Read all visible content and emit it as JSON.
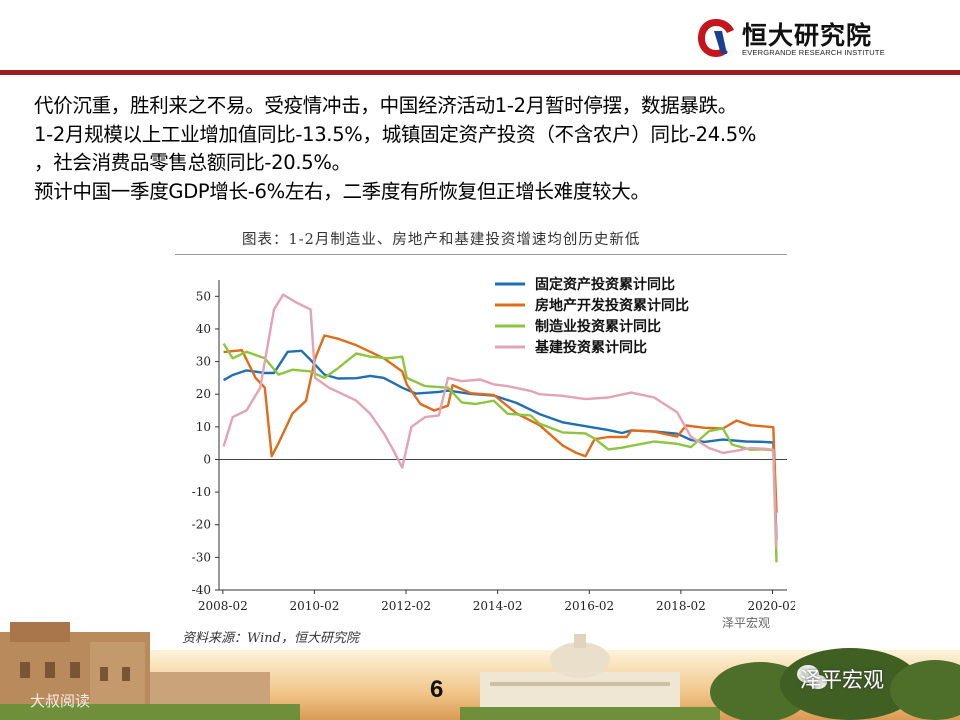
{
  "header": {
    "logo_text": "恒大研究院",
    "logo_subtitle": "EVERGRANDE RESEARCH INSTITUTE",
    "accent": "#9e1b1f"
  },
  "intro": {
    "lines": [
      "代价沉重，胜利来之不易。受疫情冲击，中国经济活动1-2月暂时停摆，数据暴跌。",
      "1-2月规模以上工业增加值同比-13.5%，城镇固定资产投资（不含农户）同比-24.5%",
      "，社会消费品零售总额同比-20.5%。",
      "预计中国一季度GDP增长-6%左右，二季度有所恢复但正增长难度较大。"
    ]
  },
  "chart_title": "图表：1-2月制造业、房地产和基建投资增速均创历史新低",
  "source": "资料来源：Wind，恒大研究院",
  "footer": {
    "page_number": "6",
    "watermark_center": "泽平宏观",
    "watermark_right": "泽平宏观",
    "watermark_left": "大叔阅读"
  },
  "chart_data": {
    "type": "line",
    "title": "图表：1-2月制造业、房地产和基建投资增速均创历史新低",
    "xlabel": "",
    "ylabel": "",
    "ylim": [
      -40,
      55
    ],
    "xlim": [
      2008.0,
      2020.4
    ],
    "yticks": [
      50,
      40,
      30,
      20,
      10,
      0,
      -10,
      -20,
      -30,
      -40
    ],
    "xticks": [
      "2008-02",
      "2010-02",
      "2012-02",
      "2014-02",
      "2016-02",
      "2018-02",
      "2020-02"
    ],
    "grid": false,
    "legend_position": "top-right",
    "series": [
      {
        "name": "固定资产投资累计同比",
        "color": "#1f6fb5",
        "points": [
          [
            2008.1,
            24.3
          ],
          [
            2008.3,
            25.9
          ],
          [
            2008.6,
            27.3
          ],
          [
            2009.0,
            26.5
          ],
          [
            2009.2,
            26.5
          ],
          [
            2009.5,
            33.0
          ],
          [
            2009.8,
            33.3
          ],
          [
            2010.0,
            30.5
          ],
          [
            2010.3,
            26.0
          ],
          [
            2010.6,
            24.8
          ],
          [
            2011.0,
            24.9
          ],
          [
            2011.3,
            25.6
          ],
          [
            2011.6,
            25.0
          ],
          [
            2012.0,
            22.0
          ],
          [
            2012.3,
            20.2
          ],
          [
            2012.8,
            20.7
          ],
          [
            2013.0,
            21.1
          ],
          [
            2013.5,
            20.1
          ],
          [
            2014.0,
            19.6
          ],
          [
            2014.5,
            17.3
          ],
          [
            2015.0,
            13.9
          ],
          [
            2015.5,
            11.4
          ],
          [
            2016.0,
            10.2
          ],
          [
            2016.5,
            9.0
          ],
          [
            2016.8,
            8.1
          ],
          [
            2017.0,
            8.9
          ],
          [
            2017.5,
            8.6
          ],
          [
            2018.0,
            7.9
          ],
          [
            2018.3,
            6.0
          ],
          [
            2018.6,
            5.4
          ],
          [
            2019.0,
            6.1
          ],
          [
            2019.5,
            5.5
          ],
          [
            2019.9,
            5.4
          ],
          [
            2020.1,
            5.2
          ],
          [
            2020.17,
            -24.5
          ]
        ]
      },
      {
        "name": "房地产开发投资累计同比",
        "color": "#e06c1a",
        "points": [
          [
            2008.1,
            32.9
          ],
          [
            2008.5,
            33.5
          ],
          [
            2008.8,
            25.0
          ],
          [
            2009.0,
            22.0
          ],
          [
            2009.15,
            1.0
          ],
          [
            2009.3,
            5.0
          ],
          [
            2009.6,
            14.0
          ],
          [
            2009.9,
            18.0
          ],
          [
            2010.1,
            31.0
          ],
          [
            2010.3,
            38.0
          ],
          [
            2010.6,
            37.0
          ],
          [
            2011.0,
            35.0
          ],
          [
            2011.3,
            33.0
          ],
          [
            2011.6,
            31.0
          ],
          [
            2012.0,
            27.0
          ],
          [
            2012.1,
            23.0
          ],
          [
            2012.4,
            17.0
          ],
          [
            2012.7,
            15.0
          ],
          [
            2013.0,
            16.5
          ],
          [
            2013.1,
            22.8
          ],
          [
            2013.5,
            20.3
          ],
          [
            2014.0,
            19.8
          ],
          [
            2014.5,
            14.1
          ],
          [
            2015.0,
            10.5
          ],
          [
            2015.5,
            4.3
          ],
          [
            2015.8,
            2.0
          ],
          [
            2016.0,
            1.0
          ],
          [
            2016.2,
            6.2
          ],
          [
            2016.5,
            6.9
          ],
          [
            2016.9,
            6.9
          ],
          [
            2017.0,
            8.9
          ],
          [
            2017.5,
            8.5
          ],
          [
            2018.0,
            7.0
          ],
          [
            2018.2,
            10.4
          ],
          [
            2018.6,
            9.7
          ],
          [
            2019.0,
            9.5
          ],
          [
            2019.3,
            11.9
          ],
          [
            2019.6,
            10.5
          ],
          [
            2020.0,
            10.0
          ],
          [
            2020.1,
            9.9
          ],
          [
            2020.17,
            -16.3
          ]
        ]
      },
      {
        "name": "制造业投资累计同比",
        "color": "#8cc63f",
        "points": [
          [
            2008.1,
            35.5
          ],
          [
            2008.3,
            31.0
          ],
          [
            2008.6,
            33.0
          ],
          [
            2009.0,
            31.0
          ],
          [
            2009.3,
            26.0
          ],
          [
            2009.6,
            27.5
          ],
          [
            2010.0,
            27.0
          ],
          [
            2010.3,
            25.0
          ],
          [
            2010.6,
            28.0
          ],
          [
            2011.0,
            32.5
          ],
          [
            2011.3,
            31.5
          ],
          [
            2011.7,
            31.0
          ],
          [
            2012.0,
            31.5
          ],
          [
            2012.1,
            25.0
          ],
          [
            2012.5,
            22.5
          ],
          [
            2013.0,
            22.0
          ],
          [
            2013.3,
            17.5
          ],
          [
            2013.6,
            17.0
          ],
          [
            2014.0,
            18.0
          ],
          [
            2014.3,
            14.0
          ],
          [
            2014.8,
            13.5
          ],
          [
            2015.0,
            11.0
          ],
          [
            2015.5,
            8.3
          ],
          [
            2016.0,
            8.0
          ],
          [
            2016.2,
            6.4
          ],
          [
            2016.5,
            3.1
          ],
          [
            2016.8,
            3.6
          ],
          [
            2017.0,
            4.2
          ],
          [
            2017.5,
            5.5
          ],
          [
            2018.0,
            4.8
          ],
          [
            2018.3,
            3.8
          ],
          [
            2018.7,
            8.7
          ],
          [
            2019.0,
            9.5
          ],
          [
            2019.2,
            4.6
          ],
          [
            2019.6,
            3.0
          ],
          [
            2019.9,
            3.1
          ],
          [
            2020.1,
            2.8
          ],
          [
            2020.17,
            -31.5
          ]
        ]
      },
      {
        "name": "基建投资累计同比",
        "color": "#e3a3b4",
        "points": [
          [
            2008.1,
            4.0
          ],
          [
            2008.3,
            13.0
          ],
          [
            2008.6,
            15.0
          ],
          [
            2008.9,
            22.0
          ],
          [
            2009.1,
            38.0
          ],
          [
            2009.2,
            46.0
          ],
          [
            2009.4,
            50.5
          ],
          [
            2009.7,
            48.0
          ],
          [
            2010.0,
            46.0
          ],
          [
            2010.1,
            25.0
          ],
          [
            2010.4,
            22.0
          ],
          [
            2010.7,
            20.0
          ],
          [
            2011.0,
            18.0
          ],
          [
            2011.3,
            14.0
          ],
          [
            2011.6,
            8.0
          ],
          [
            2011.8,
            3.0
          ],
          [
            2012.0,
            -2.5
          ],
          [
            2012.2,
            10.0
          ],
          [
            2012.5,
            13.0
          ],
          [
            2012.8,
            13.5
          ],
          [
            2013.0,
            25.0
          ],
          [
            2013.3,
            24.0
          ],
          [
            2013.7,
            24.5
          ],
          [
            2014.0,
            23.0
          ],
          [
            2014.3,
            22.5
          ],
          [
            2014.8,
            21.0
          ],
          [
            2015.0,
            20.0
          ],
          [
            2015.5,
            19.5
          ],
          [
            2016.0,
            18.5
          ],
          [
            2016.5,
            19.0
          ],
          [
            2017.0,
            20.5
          ],
          [
            2017.5,
            19.0
          ],
          [
            2018.0,
            14.5
          ],
          [
            2018.3,
            7.0
          ],
          [
            2018.7,
            3.5
          ],
          [
            2019.0,
            2.0
          ],
          [
            2019.3,
            2.7
          ],
          [
            2019.6,
            3.5
          ],
          [
            2019.9,
            3.3
          ],
          [
            2020.1,
            3.0
          ],
          [
            2020.17,
            -26.9
          ]
        ]
      }
    ]
  }
}
